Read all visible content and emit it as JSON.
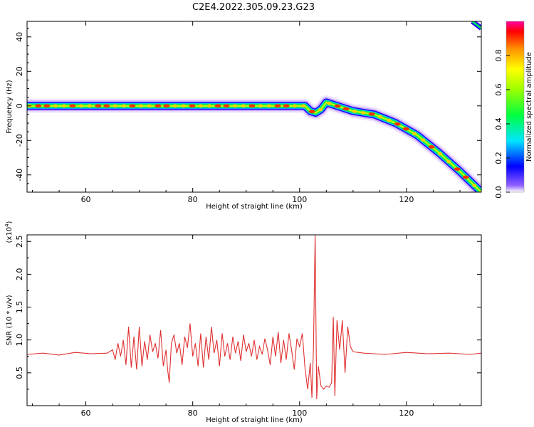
{
  "title": "C2E4.2022.305.09.23.G23",
  "chart_data": [
    {
      "type": "heatmap",
      "title": "C2E4.2022.305.09.23.G23",
      "xlabel": "Height of straight line (km)",
      "ylabel": "Frequency (Hz)",
      "xlim": [
        49,
        134
      ],
      "ylim": [
        -50,
        49
      ],
      "xticks": [
        60,
        80,
        100,
        120
      ],
      "yticks": [
        40,
        20,
        0,
        -20,
        -40
      ],
      "ridge": {
        "x": [
          49,
          55,
          60,
          65,
          70,
          75,
          80,
          85,
          90,
          95,
          99,
          101,
          102,
          103,
          104,
          105,
          107,
          110,
          114,
          118,
          122,
          126,
          130,
          134
        ],
        "y": [
          0,
          0,
          0,
          0,
          0,
          0,
          0,
          0,
          0,
          0,
          0,
          0,
          -3,
          -4,
          -2,
          2,
          0,
          -3,
          -5,
          -10,
          -17,
          -27,
          -38,
          -50
        ]
      },
      "upper_ridge": {
        "x": [
          132.3,
          134
        ],
        "y": [
          49,
          45
        ]
      },
      "colorbar": {
        "label": "Normalized spectral amplitude",
        "range": [
          0,
          1
        ],
        "ticks": [
          "0.0",
          "0.2",
          "0.4",
          "0.6",
          "0.8"
        ]
      }
    },
    {
      "type": "line",
      "xlabel": "Height of straight line (km)",
      "ylabel": "SNR (10 * v/v)",
      "multiplier": "(x10",
      "multiplier_exp": "4",
      "multiplier_close": ")",
      "xlim": [
        49,
        134
      ],
      "ylim": [
        0,
        2.6
      ],
      "xticks": [
        60,
        80,
        100,
        120
      ],
      "yticks": [
        0.5,
        1.0,
        1.5,
        2.0,
        2.5
      ],
      "series": [
        {
          "color": "#e03030",
          "x": [
            49,
            52,
            55,
            58,
            61,
            64,
            65,
            65.5,
            66,
            66.5,
            67,
            67.5,
            68,
            68.5,
            69,
            69.5,
            70,
            70.5,
            71,
            71.5,
            72,
            72.5,
            73,
            73.5,
            74,
            74.5,
            75,
            75.3,
            75.6,
            76,
            76.5,
            77,
            77.5,
            78,
            78.5,
            79,
            79.5,
            80,
            80.5,
            81,
            81.5,
            82,
            82.5,
            83,
            83.5,
            84,
            84.5,
            85,
            85.5,
            86,
            86.5,
            87,
            87.5,
            88,
            88.5,
            89,
            89.5,
            90,
            90.5,
            91,
            91.5,
            92,
            92.5,
            93,
            93.5,
            94,
            94.5,
            95,
            95.5,
            96,
            96.5,
            97,
            97.5,
            98,
            98.5,
            99,
            99.5,
            100,
            100.5,
            101,
            101.5,
            102,
            102.3,
            102.6,
            102.9,
            103.2,
            103.5,
            104,
            104.5,
            105,
            105.5,
            106,
            106.3,
            106.6,
            107,
            107.5,
            108,
            108.5,
            109,
            109.5,
            110,
            112,
            116,
            120,
            124,
            128,
            132,
            134
          ],
          "y": [
            0.78,
            0.8,
            0.77,
            0.81,
            0.79,
            0.8,
            0.85,
            0.7,
            0.95,
            0.75,
            1.0,
            0.62,
            1.2,
            0.58,
            1.05,
            0.55,
            1.2,
            0.6,
            0.98,
            0.7,
            1.08,
            0.82,
            0.95,
            0.72,
            1.15,
            0.6,
            0.85,
            0.55,
            0.35,
            0.95,
            1.08,
            0.8,
            0.95,
            0.62,
            1.05,
            0.88,
            1.25,
            0.75,
            0.95,
            0.6,
            1.1,
            0.58,
            1.05,
            0.7,
            1.2,
            0.8,
            1.0,
            0.6,
            1.1,
            0.75,
            0.95,
            0.7,
            1.05,
            0.8,
            0.98,
            0.68,
            1.08,
            0.82,
            0.95,
            0.75,
            1.0,
            0.7,
            0.9,
            0.78,
            1.02,
            0.85,
            0.62,
            1.05,
            0.75,
            1.12,
            0.65,
            1.0,
            0.7,
            1.1,
            0.85,
            0.55,
            1.02,
            0.9,
            1.1,
            0.58,
            0.25,
            0.65,
            0.12,
            0.9,
            2.6,
            0.1,
            0.6,
            0.3,
            0.25,
            0.3,
            0.28,
            0.35,
            1.35,
            0.15,
            1.3,
            0.85,
            1.3,
            0.5,
            1.2,
            0.9,
            0.82,
            0.8,
            0.78,
            0.81,
            0.79,
            0.8,
            0.78,
            0.8
          ]
        }
      ]
    }
  ]
}
